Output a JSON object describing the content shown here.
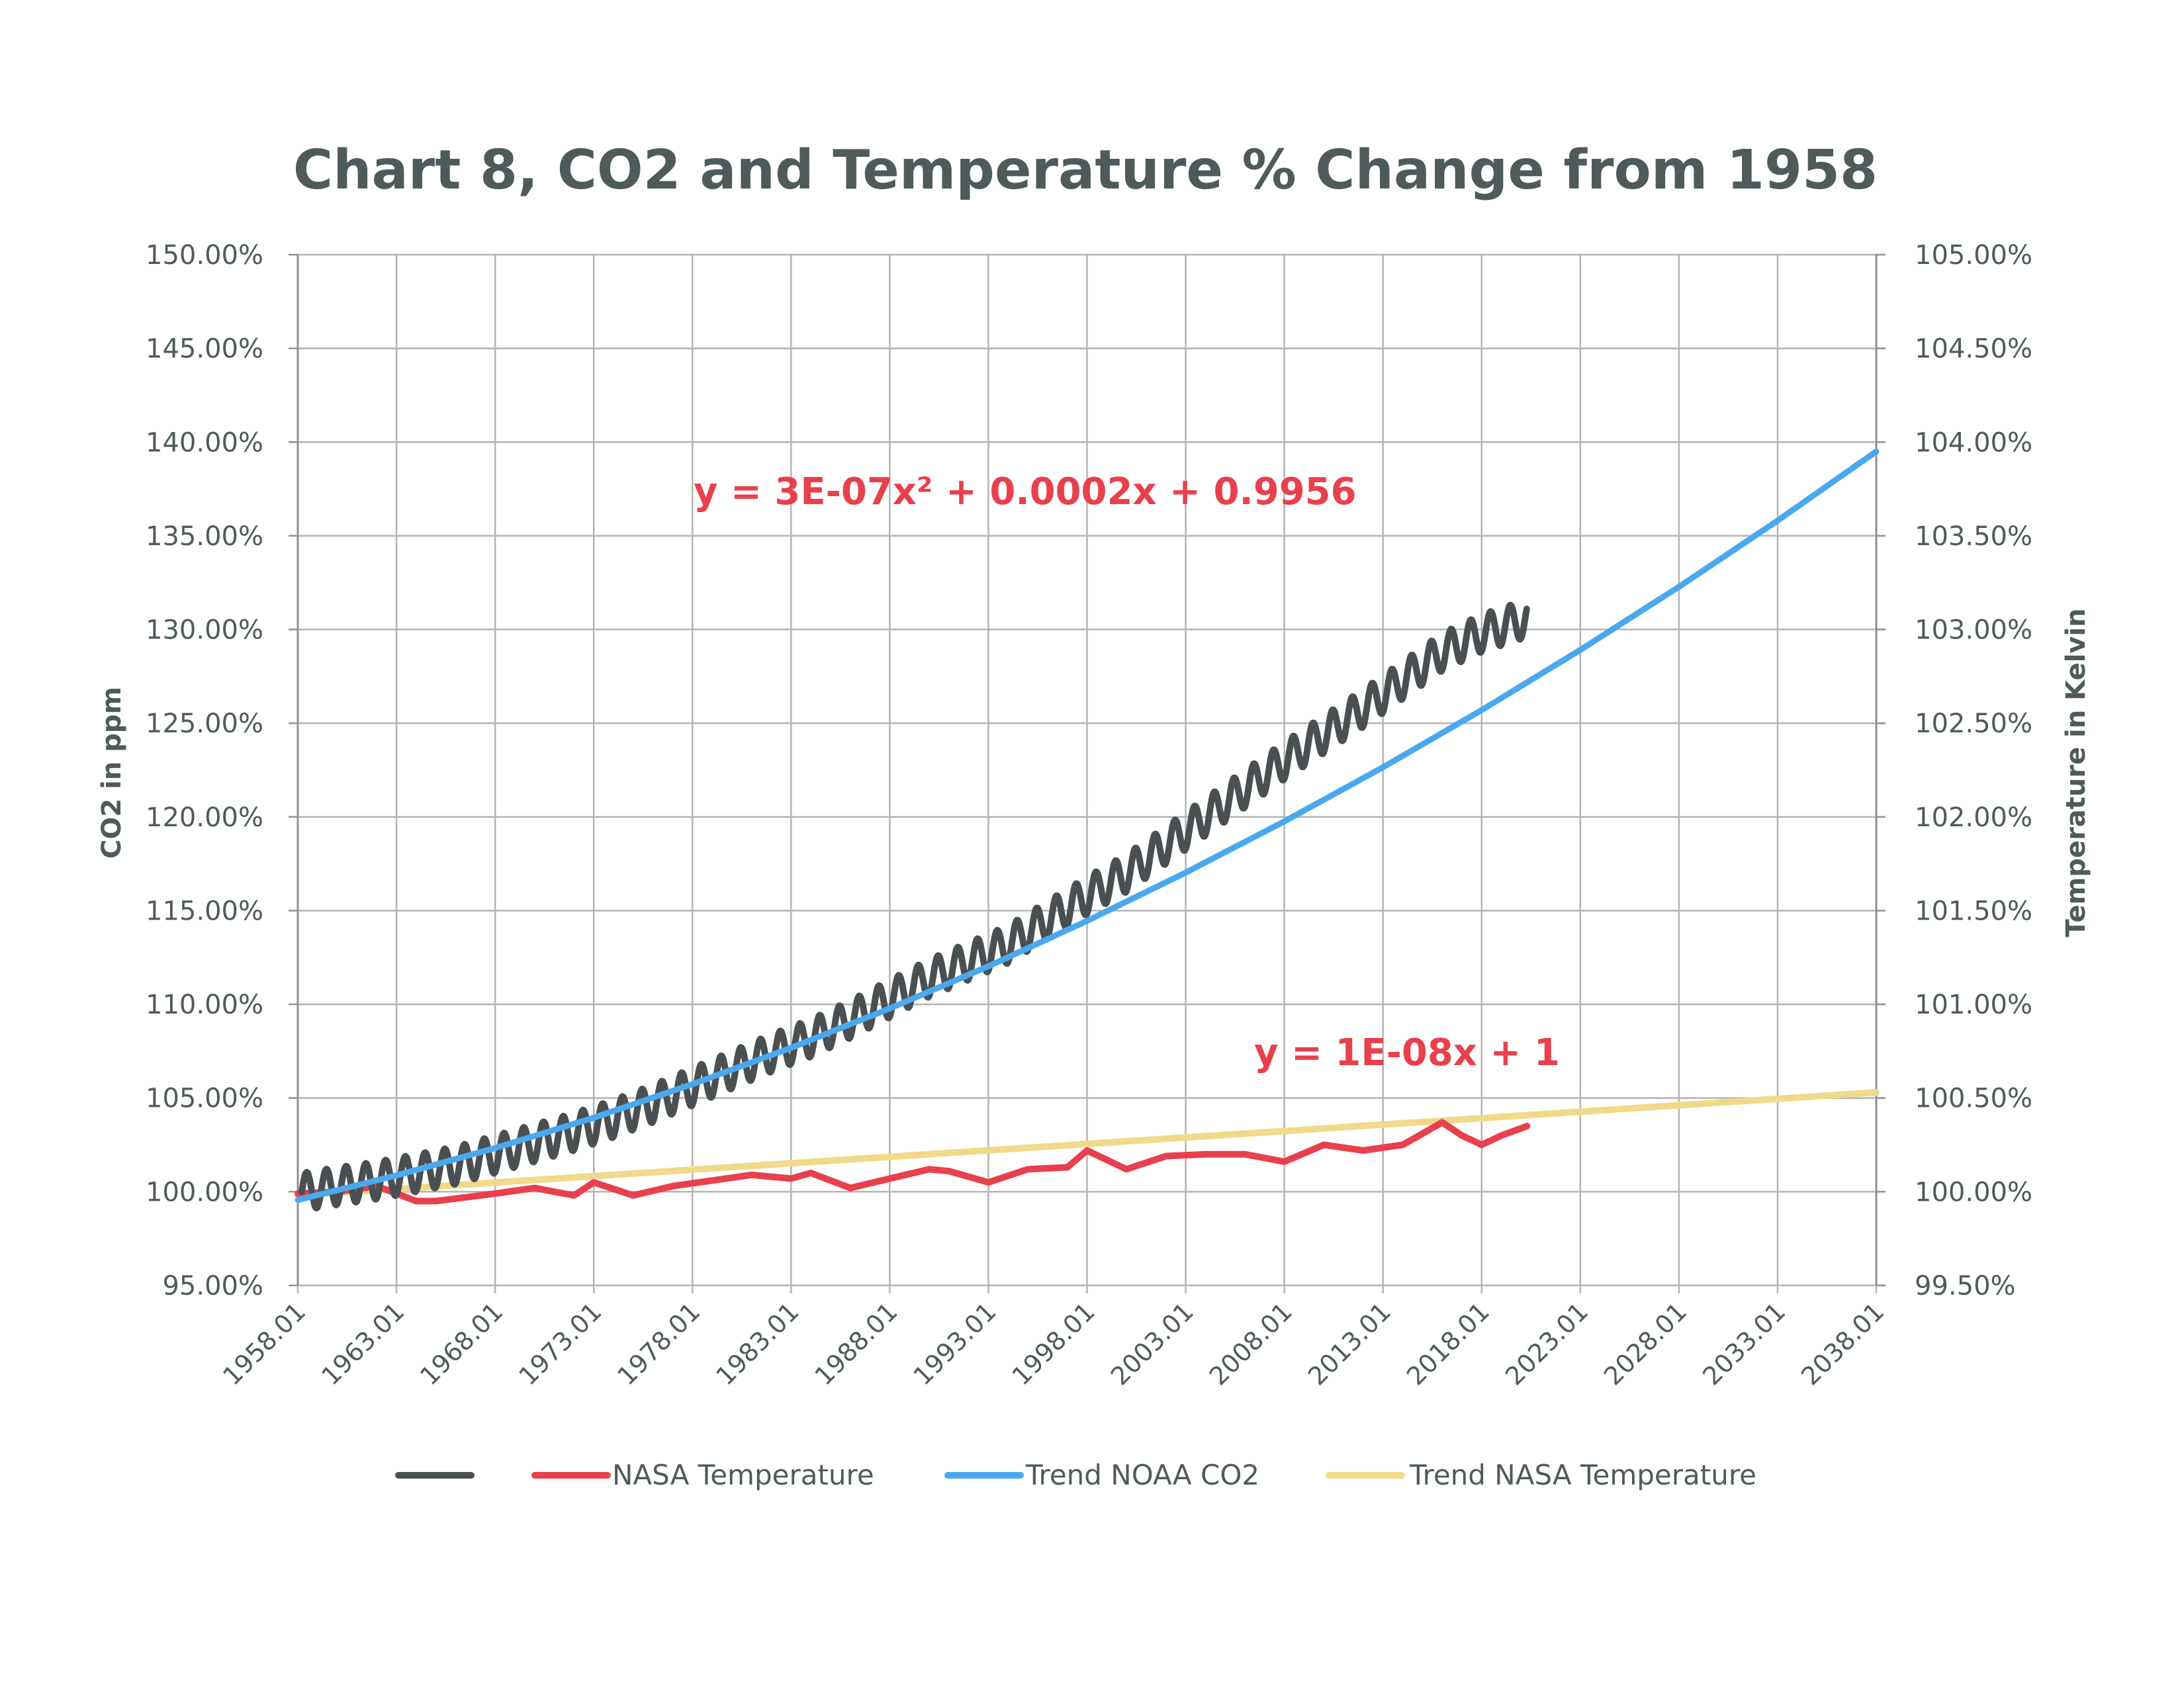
{
  "chart_data": {
    "type": "line",
    "title": "Chart 8, CO2 and Temperature % Change from 1958",
    "ylabel": "CO2 in ppm",
    "ylabel_right": "Temperature in Kelvin",
    "ylim": [
      95,
      150
    ],
    "ylim_right": [
      99.5,
      105
    ],
    "y_ticks": [
      "95.00%",
      "100.00%",
      "105.00%",
      "110.00%",
      "115.00%",
      "120.00%",
      "125.00%",
      "130.00%",
      "135.00%",
      "140.00%",
      "145.00%",
      "150.00%"
    ],
    "y_ticks_right": [
      "99.50%",
      "100.00%",
      "100.50%",
      "101.00%",
      "101.50%",
      "102.00%",
      "102.50%",
      "103.00%",
      "103.50%",
      "104.00%",
      "104.50%",
      "105.00%"
    ],
    "x_ticks": [
      "1958.01",
      "1963.01",
      "1968.01",
      "1973.01",
      "1978.01",
      "1983.01",
      "1988.01",
      "1993.01",
      "1998.01",
      "2003.01",
      "2008.01",
      "2013.01",
      "2018.01",
      "2023.01",
      "2028.01",
      "2033.01",
      "2038.01"
    ],
    "grid": true,
    "legend_position": "bottom",
    "colors": {
      "title": "#4f5b5b",
      "grid": "#b3b3b3",
      "co2": "#4a5052",
      "nasa_temp": "#e8404c",
      "trend_co2": "#4aa8ee",
      "trend_temp": "#f1d98a",
      "equation": "#e8404c"
    },
    "annotations": {
      "co2_trend_equation": "y = 3E-07x² + 0.0002x + 0.9956",
      "temp_trend_equation": "y = 1E-08x + 1"
    },
    "series": [
      {
        "name": "",
        "axis": "left",
        "color": "#4a5052",
        "x": [
          1958.2,
          1960,
          1962,
          1964,
          1966,
          1968,
          1970,
          1972,
          1974,
          1976,
          1978,
          1980,
          1982,
          1984,
          1986,
          1988,
          1990,
          1992,
          1994,
          1996,
          1998,
          2000,
          2002,
          2004,
          2006,
          2008,
          2010,
          2012,
          2014,
          2016,
          2018,
          2020.3
        ],
        "y": [
          100.0,
          100.3,
          100.6,
          101.0,
          101.4,
          102.0,
          102.6,
          103.2,
          103.9,
          104.7,
          105.6,
          106.5,
          107.4,
          108.2,
          109.2,
          110.3,
          111.4,
          112.3,
          113.2,
          114.5,
          115.8,
          117.0,
          118.5,
          120.0,
          121.5,
          123.0,
          124.4,
          125.8,
          127.3,
          128.8,
          129.8,
          130.6
        ],
        "seasonal_amplitude": 1.0
      },
      {
        "name": "NASA Temperature",
        "axis": "right",
        "color": "#e8404c",
        "x": [
          1958,
          1960,
          1962,
          1964,
          1965,
          1968,
          1970,
          1972,
          1973,
          1975,
          1977,
          1979,
          1981,
          1983,
          1984,
          1986,
          1988,
          1990,
          1991,
          1993,
          1995,
          1997,
          1998,
          2000,
          2002,
          2004,
          2006,
          2008,
          2010,
          2012,
          2014,
          2016,
          2017,
          2018,
          2019,
          2020.3
        ],
        "y": [
          99.99,
          100.0,
          100.03,
          99.95,
          99.95,
          99.99,
          100.02,
          99.98,
          100.05,
          99.98,
          100.03,
          100.06,
          100.09,
          100.07,
          100.1,
          100.02,
          100.07,
          100.12,
          100.11,
          100.05,
          100.12,
          100.13,
          100.22,
          100.12,
          100.19,
          100.2,
          100.2,
          100.16,
          100.25,
          100.22,
          100.25,
          100.37,
          100.3,
          100.25,
          100.3,
          100.35
        ]
      },
      {
        "name": "Trend NOAA CO2",
        "axis": "left",
        "color": "#4aa8ee",
        "x": [
          1958,
          1963,
          1968,
          1973,
          1978,
          1983,
          1988,
          1993,
          1998,
          2003,
          2008,
          2013,
          2018,
          2023,
          2028,
          2033,
          2038
        ],
        "y": [
          99.56,
          100.87,
          102.33,
          103.95,
          105.74,
          107.68,
          109.78,
          112.03,
          114.45,
          117.03,
          119.76,
          122.65,
          125.7,
          128.91,
          132.28,
          135.81,
          139.5
        ]
      },
      {
        "name": "Trend NASA Temperature",
        "axis": "right",
        "color": "#f1d98a",
        "x": [
          1958,
          2038
        ],
        "y": [
          99.98,
          100.53
        ]
      }
    ]
  }
}
